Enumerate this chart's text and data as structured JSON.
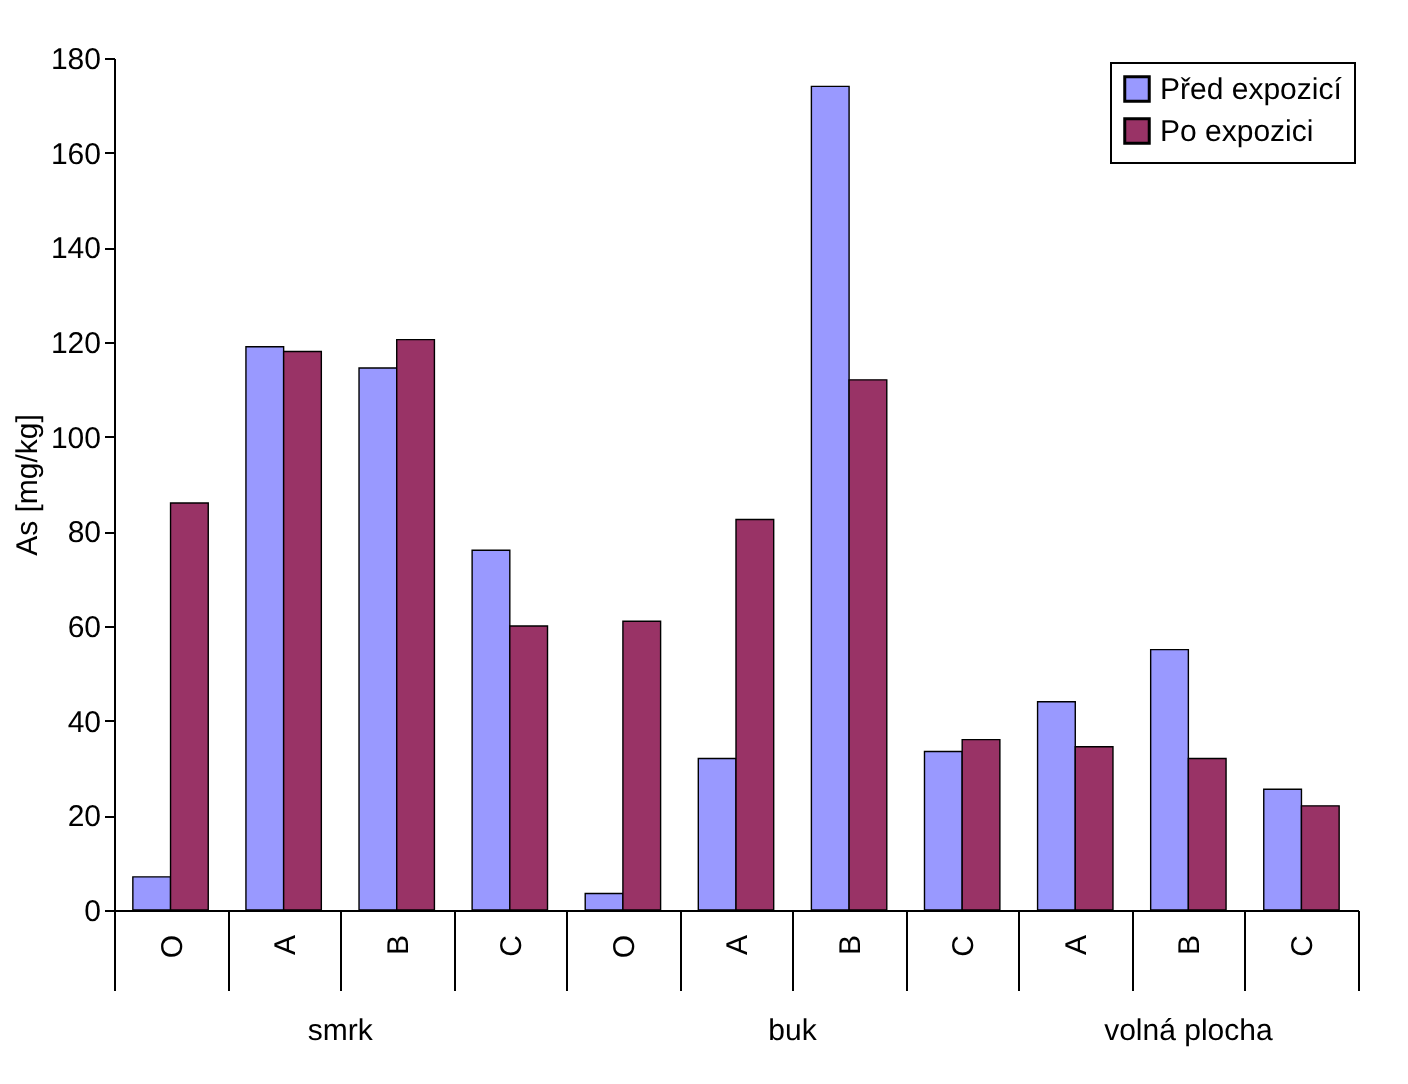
{
  "chart_data": {
    "type": "bar",
    "ylabel": "As [mg/kg]",
    "categories": [
      "O",
      "A",
      "B",
      "C",
      "O",
      "A",
      "B",
      "C",
      "A",
      "B",
      "C"
    ],
    "series": [
      {
        "name": "Před expozicí",
        "color": "#9999ff",
        "values": [
          7,
          119,
          114.5,
          76,
          3.5,
          32,
          174,
          33.5,
          44,
          55,
          25.5
        ]
      },
      {
        "name": "Po expozici",
        "color": "#993366",
        "values": [
          86,
          118,
          120.5,
          60,
          61,
          82.5,
          112,
          36,
          34.5,
          32,
          22
        ]
      }
    ],
    "ylim": [
      0,
      180
    ],
    "yticks": [
      0,
      20,
      40,
      60,
      80,
      100,
      120,
      140,
      160,
      180
    ],
    "annotations": [
      "smrk",
      "buk",
      "volná plocha"
    ],
    "grid": false,
    "legend": "top right"
  }
}
